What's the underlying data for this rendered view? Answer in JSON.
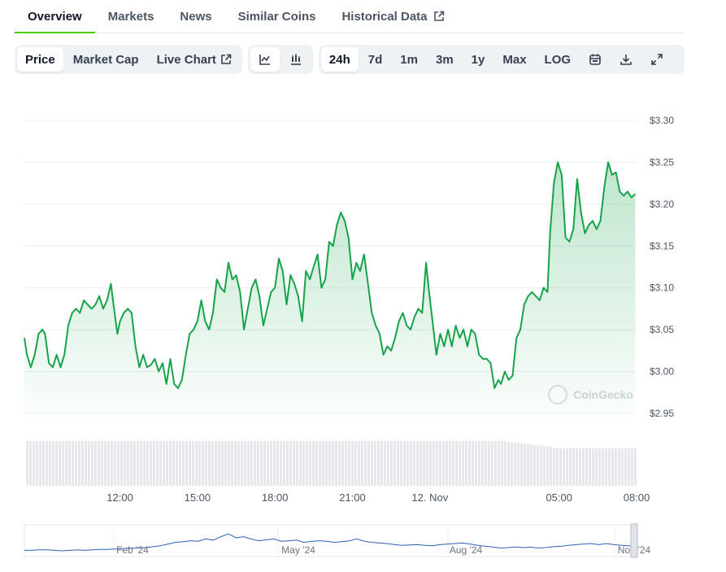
{
  "tabs": [
    {
      "label": "Overview",
      "active": true
    },
    {
      "label": "Markets",
      "active": false
    },
    {
      "label": "News",
      "active": false
    },
    {
      "label": "Similar Coins",
      "active": false
    },
    {
      "label": "Historical Data",
      "active": false,
      "external": true
    }
  ],
  "toolbar": {
    "metric_tabs": [
      {
        "label": "Price",
        "selected": true
      },
      {
        "label": "Market Cap",
        "selected": false
      },
      {
        "label": "Live Chart",
        "selected": false,
        "external": true
      }
    ],
    "chart_types": [
      {
        "icon": "line-chart-icon",
        "selected": true
      },
      {
        "icon": "candlestick-chart-icon",
        "selected": false
      }
    ],
    "ranges": [
      {
        "label": "24h",
        "selected": true
      },
      {
        "label": "7d",
        "selected": false
      },
      {
        "label": "1m",
        "selected": false
      },
      {
        "label": "3m",
        "selected": false
      },
      {
        "label": "1y",
        "selected": false
      },
      {
        "label": "Max",
        "selected": false
      },
      {
        "label": "LOG",
        "selected": false
      }
    ],
    "actions": [
      {
        "icon": "calendar-icon"
      },
      {
        "icon": "download-icon"
      },
      {
        "icon": "fullscreen-icon"
      }
    ]
  },
  "watermark": "CoinGecko",
  "colors": {
    "accent": "#4bcc00",
    "line": "#16a34a",
    "volume": "#e5e7eb",
    "navigator": "#2f5fb8"
  },
  "chart_data": {
    "type": "line",
    "y_ticks": [
      "$3.30",
      "$3.25",
      "$3.20",
      "$3.15",
      "$3.10",
      "$3.05",
      "$3.00",
      "$2.95"
    ],
    "ylim": [
      2.95,
      3.3
    ],
    "x_ticks": [
      "12:00",
      "15:00",
      "18:00",
      "21:00",
      "12. Nov",
      "05:00",
      "08:00"
    ],
    "x_tick_hours": [
      12,
      15,
      18,
      21,
      24,
      29,
      32
    ],
    "xlim_hours": [
      8.3,
      32.0
    ],
    "series": [
      {
        "values": [
          [
            8.3,
            3.04
          ],
          [
            8.4,
            3.02
          ],
          [
            8.55,
            3.005
          ],
          [
            8.7,
            3.02
          ],
          [
            8.85,
            3.045
          ],
          [
            9.0,
            3.05
          ],
          [
            9.1,
            3.045
          ],
          [
            9.25,
            3.01
          ],
          [
            9.4,
            3.005
          ],
          [
            9.55,
            3.02
          ],
          [
            9.7,
            3.005
          ],
          [
            9.85,
            3.02
          ],
          [
            10.0,
            3.055
          ],
          [
            10.15,
            3.07
          ],
          [
            10.3,
            3.075
          ],
          [
            10.45,
            3.07
          ],
          [
            10.6,
            3.085
          ],
          [
            10.75,
            3.08
          ],
          [
            10.9,
            3.075
          ],
          [
            11.05,
            3.08
          ],
          [
            11.2,
            3.09
          ],
          [
            11.35,
            3.075
          ],
          [
            11.5,
            3.085
          ],
          [
            11.65,
            3.105
          ],
          [
            11.75,
            3.08
          ],
          [
            11.9,
            3.045
          ],
          [
            12.0,
            3.06
          ],
          [
            12.15,
            3.07
          ],
          [
            12.3,
            3.075
          ],
          [
            12.45,
            3.07
          ],
          [
            12.6,
            3.03
          ],
          [
            12.75,
            3.005
          ],
          [
            12.9,
            3.02
          ],
          [
            13.05,
            3.005
          ],
          [
            13.2,
            3.008
          ],
          [
            13.35,
            3.015
          ],
          [
            13.5,
            3.0
          ],
          [
            13.65,
            3.01
          ],
          [
            13.8,
            2.985
          ],
          [
            13.95,
            3.015
          ],
          [
            14.1,
            2.985
          ],
          [
            14.25,
            2.98
          ],
          [
            14.4,
            2.99
          ],
          [
            14.55,
            3.02
          ],
          [
            14.7,
            3.045
          ],
          [
            14.85,
            3.05
          ],
          [
            15.0,
            3.06
          ],
          [
            15.15,
            3.085
          ],
          [
            15.3,
            3.06
          ],
          [
            15.45,
            3.05
          ],
          [
            15.6,
            3.07
          ],
          [
            15.75,
            3.11
          ],
          [
            15.9,
            3.1
          ],
          [
            16.05,
            3.095
          ],
          [
            16.2,
            3.13
          ],
          [
            16.35,
            3.11
          ],
          [
            16.5,
            3.115
          ],
          [
            16.65,
            3.095
          ],
          [
            16.8,
            3.05
          ],
          [
            16.95,
            3.075
          ],
          [
            17.1,
            3.1
          ],
          [
            17.25,
            3.11
          ],
          [
            17.4,
            3.09
          ],
          [
            17.55,
            3.055
          ],
          [
            17.7,
            3.075
          ],
          [
            17.85,
            3.095
          ],
          [
            18.0,
            3.1
          ],
          [
            18.15,
            3.135
          ],
          [
            18.3,
            3.12
          ],
          [
            18.45,
            3.08
          ],
          [
            18.6,
            3.115
          ],
          [
            18.75,
            3.105
          ],
          [
            18.9,
            3.09
          ],
          [
            19.05,
            3.06
          ],
          [
            19.2,
            3.12
          ],
          [
            19.35,
            3.11
          ],
          [
            19.5,
            3.125
          ],
          [
            19.65,
            3.14
          ],
          [
            19.8,
            3.1
          ],
          [
            19.95,
            3.11
          ],
          [
            20.1,
            3.155
          ],
          [
            20.25,
            3.15
          ],
          [
            20.4,
            3.175
          ],
          [
            20.55,
            3.19
          ],
          [
            20.7,
            3.18
          ],
          [
            20.85,
            3.16
          ],
          [
            21.0,
            3.11
          ],
          [
            21.15,
            3.13
          ],
          [
            21.3,
            3.12
          ],
          [
            21.45,
            3.14
          ],
          [
            21.6,
            3.105
          ],
          [
            21.75,
            3.07
          ],
          [
            21.9,
            3.055
          ],
          [
            22.05,
            3.045
          ],
          [
            22.2,
            3.02
          ],
          [
            22.35,
            3.03
          ],
          [
            22.5,
            3.025
          ],
          [
            22.65,
            3.04
          ],
          [
            22.8,
            3.06
          ],
          [
            22.95,
            3.07
          ],
          [
            23.1,
            3.055
          ],
          [
            23.25,
            3.05
          ],
          [
            23.4,
            3.065
          ],
          [
            23.55,
            3.075
          ],
          [
            23.7,
            3.07
          ],
          [
            23.85,
            3.13
          ],
          [
            23.95,
            3.1
          ],
          [
            24.1,
            3.06
          ],
          [
            24.25,
            3.02
          ],
          [
            24.4,
            3.045
          ],
          [
            24.55,
            3.03
          ],
          [
            24.7,
            3.05
          ],
          [
            24.85,
            3.03
          ],
          [
            25.0,
            3.055
          ],
          [
            25.15,
            3.04
          ],
          [
            25.3,
            3.05
          ],
          [
            25.45,
            3.03
          ],
          [
            25.6,
            3.05
          ],
          [
            25.75,
            3.045
          ],
          [
            25.9,
            3.02
          ],
          [
            26.05,
            3.015
          ],
          [
            26.2,
            3.015
          ],
          [
            26.35,
            3.01
          ],
          [
            26.5,
            2.98
          ],
          [
            26.65,
            2.99
          ],
          [
            26.75,
            2.985
          ],
          [
            26.9,
            3.0
          ],
          [
            27.05,
            2.99
          ],
          [
            27.2,
            2.995
          ],
          [
            27.35,
            3.04
          ],
          [
            27.5,
            3.05
          ],
          [
            27.65,
            3.08
          ],
          [
            27.8,
            3.09
          ],
          [
            27.95,
            3.095
          ],
          [
            28.1,
            3.09
          ],
          [
            28.25,
            3.085
          ],
          [
            28.4,
            3.1
          ],
          [
            28.55,
            3.095
          ],
          [
            28.65,
            3.165
          ],
          [
            28.8,
            3.225
          ],
          [
            28.95,
            3.25
          ],
          [
            29.1,
            3.235
          ],
          [
            29.25,
            3.16
          ],
          [
            29.4,
            3.155
          ],
          [
            29.55,
            3.17
          ],
          [
            29.7,
            3.23
          ],
          [
            29.85,
            3.19
          ],
          [
            30.0,
            3.165
          ],
          [
            30.15,
            3.175
          ],
          [
            30.3,
            3.18
          ],
          [
            30.45,
            3.17
          ],
          [
            30.6,
            3.18
          ],
          [
            30.75,
            3.22
          ],
          [
            30.9,
            3.25
          ],
          [
            31.05,
            3.235
          ],
          [
            31.2,
            3.238
          ],
          [
            31.35,
            3.215
          ],
          [
            31.5,
            3.21
          ],
          [
            31.65,
            3.215
          ],
          [
            31.8,
            3.208
          ],
          [
            31.95,
            3.212
          ]
        ]
      }
    ],
    "navigator": {
      "labels": [
        "Feb '24",
        "May '24",
        "Aug '24",
        "Nov '24"
      ]
    }
  }
}
